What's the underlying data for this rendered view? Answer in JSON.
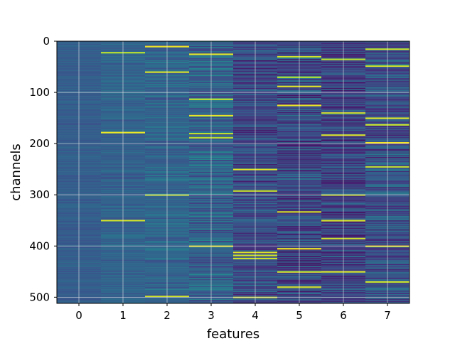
{
  "chart_data": {
    "type": "heatmap",
    "title": "",
    "xlabel": "features",
    "ylabel": "channels",
    "x_categories": [
      0,
      1,
      2,
      3,
      4,
      5,
      6,
      7
    ],
    "y_range": [
      0,
      512
    ],
    "y_ticks": [
      0,
      100,
      200,
      300,
      400,
      500
    ],
    "x_ticks": [
      "0",
      "1",
      "2",
      "3",
      "4",
      "5",
      "6",
      "7"
    ],
    "y_tick_labels": [
      "0",
      "100",
      "200",
      "300",
      "400",
      "500"
    ],
    "grid": true,
    "colormap": "viridis",
    "rows": 512,
    "columns": [
      {
        "feature": 0,
        "mean": 0.3,
        "spread": 0.05,
        "highlights": []
      },
      {
        "feature": 1,
        "mean": 0.32,
        "spread": 0.07,
        "highlights": [
          22,
          178,
          350
        ]
      },
      {
        "feature": 2,
        "mean": 0.33,
        "spread": 0.1,
        "highlights": [
          10,
          60,
          300,
          498
        ]
      },
      {
        "feature": 3,
        "mean": 0.32,
        "spread": 0.16,
        "highlights": [
          25,
          113,
          145,
          180,
          188,
          400
        ]
      },
      {
        "feature": 4,
        "mean": 0.22,
        "spread": 0.16,
        "highlights": [
          250,
          292,
          412,
          418,
          424,
          500
        ]
      },
      {
        "feature": 5,
        "mean": 0.22,
        "spread": 0.2,
        "highlights": [
          30,
          70,
          88,
          125,
          333,
          405,
          450,
          480
        ]
      },
      {
        "feature": 6,
        "mean": 0.2,
        "spread": 0.17,
        "highlights": [
          35,
          140,
          183,
          300,
          350,
          385,
          450
        ]
      },
      {
        "feature": 7,
        "mean": 0.26,
        "spread": 0.18,
        "highlights": [
          15,
          48,
          150,
          163,
          198,
          245,
          400,
          470
        ]
      }
    ],
    "colors": {
      "background": "#ffffff",
      "grid": "#e6e6e6",
      "axis": "#000000"
    }
  }
}
